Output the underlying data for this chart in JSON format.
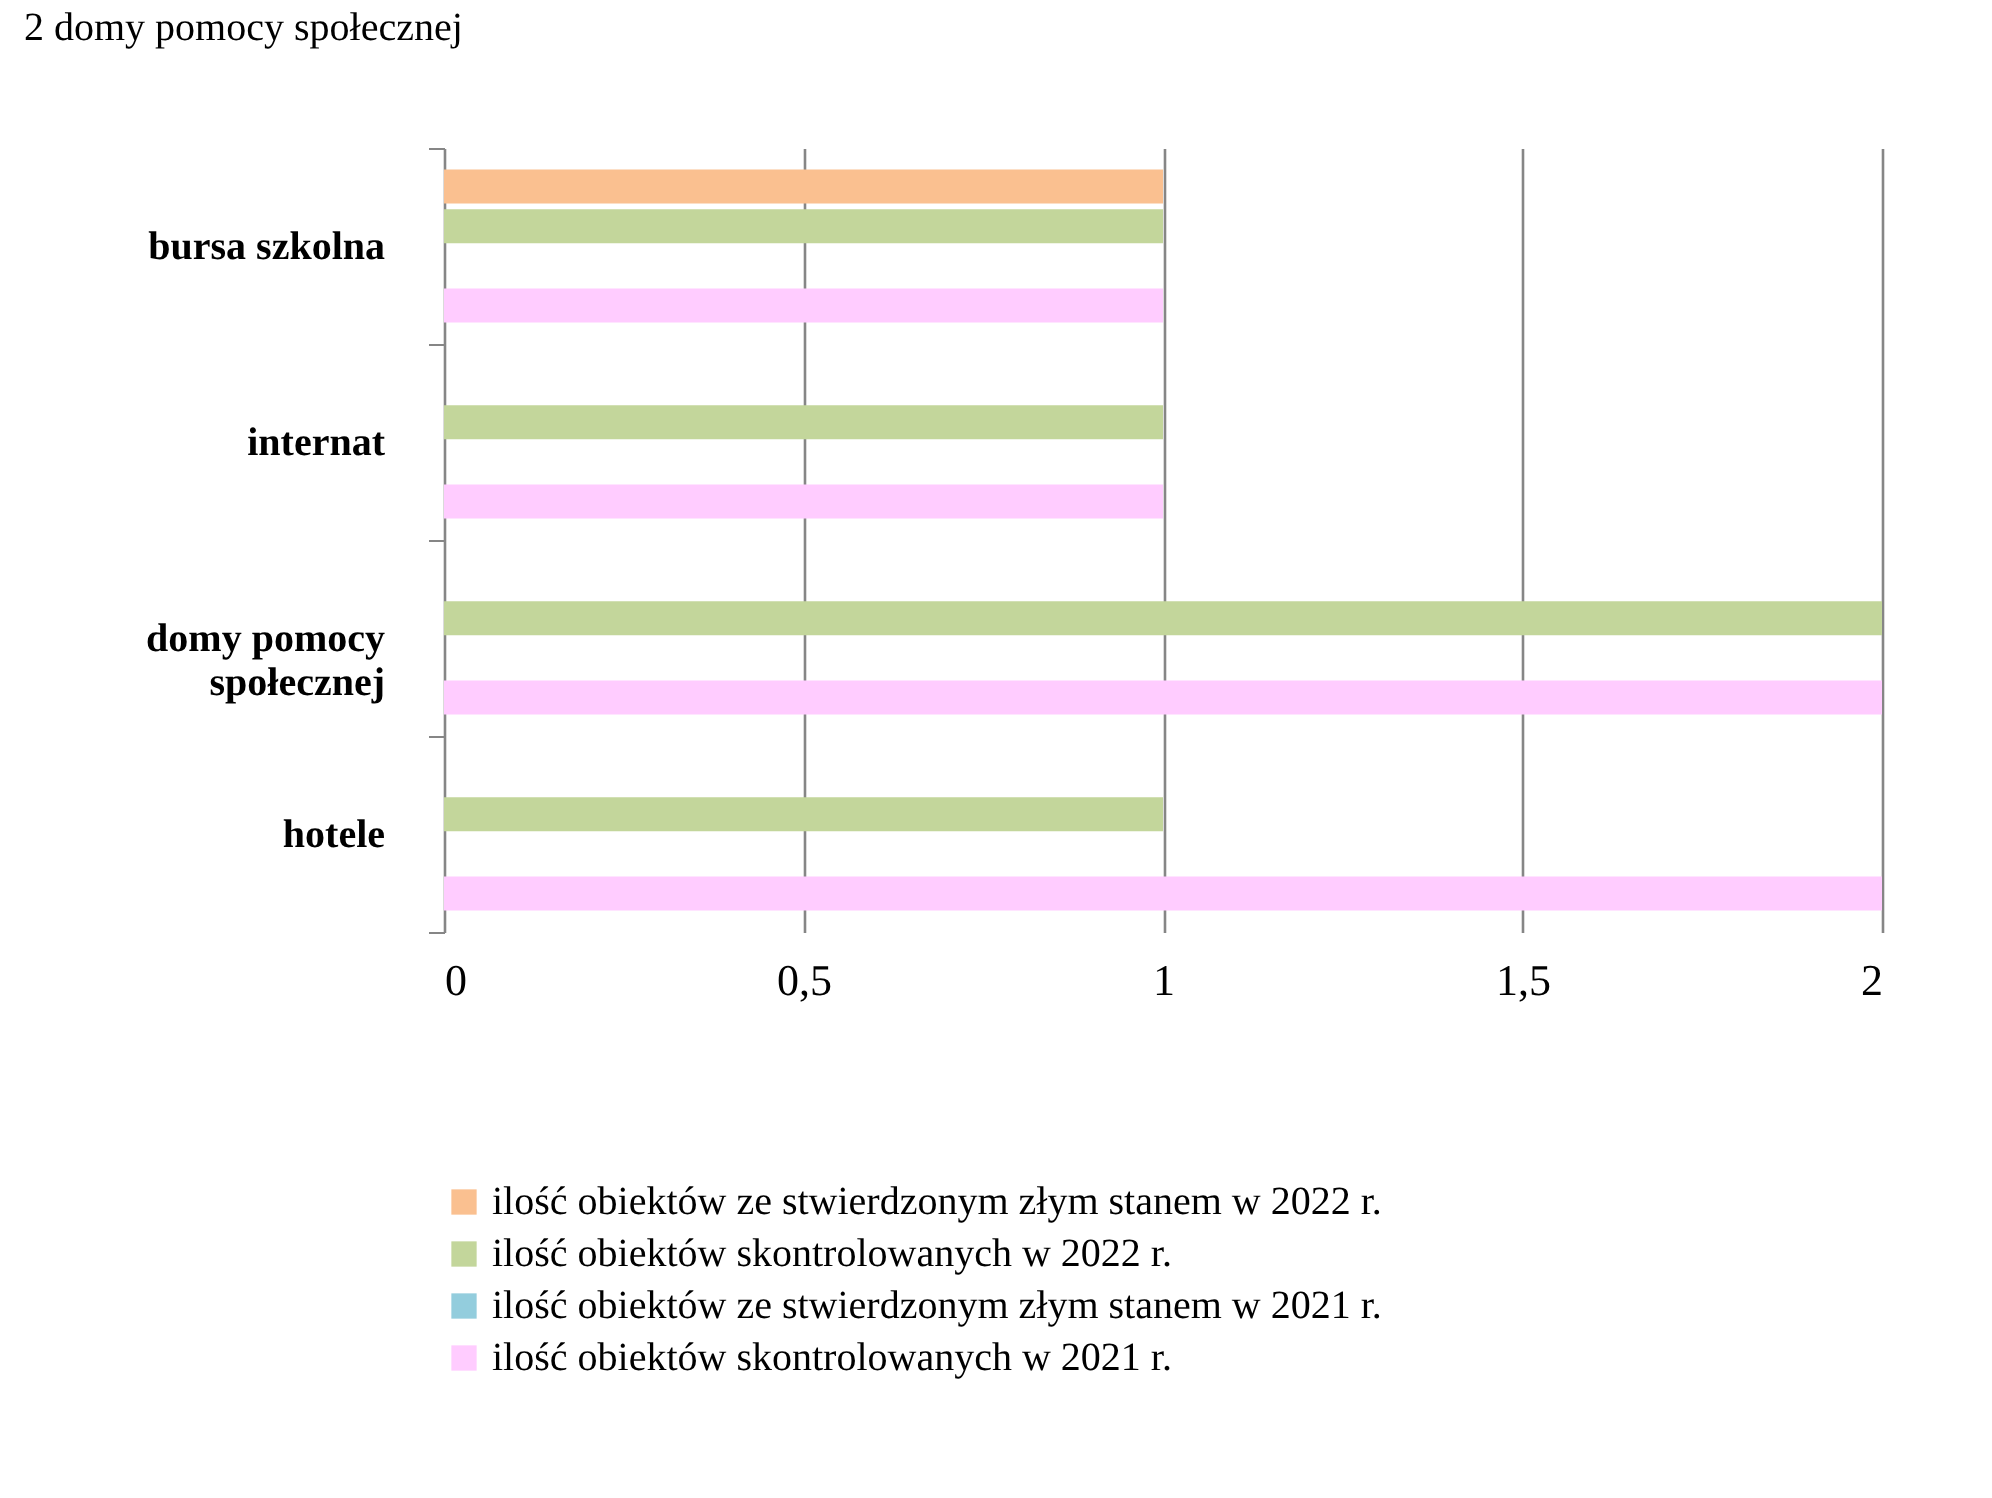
{
  "chart_data": {
    "type": "bar",
    "orientation": "horizontal",
    "annotations": [
      "2 domy pomocy społecznej"
    ],
    "categories": [
      "bursa szkolna",
      "internat",
      "domy pomocy społecznej",
      "hotele"
    ],
    "series": [
      {
        "name": "ilość obiektów ze stwierdzonym złym stanem w 2022 r.",
        "color": "#fac090",
        "values": [
          1,
          null,
          null,
          null
        ]
      },
      {
        "name": "ilość obiektów skontrolowanych w 2022 r.",
        "color": "#c3d69b",
        "values": [
          1,
          1,
          2,
          1
        ]
      },
      {
        "name": "ilość obiektów ze stwierdzonym złym stanem w 2021 r.",
        "color": "#93cddd",
        "values": [
          null,
          null,
          null,
          null
        ]
      },
      {
        "name": "ilość obiektów skontrolowanych w 2021 r.",
        "color": "#ffccff",
        "values": [
          1,
          1,
          2,
          2
        ]
      }
    ],
    "xlim": [
      0,
      2
    ],
    "xticks": [
      0,
      {
        "value": 0.5,
        "label": "0,5"
      },
      1,
      {
        "value": 1.5,
        "label": "1,5"
      },
      2
    ],
    "grid": "x",
    "legend": "bottom"
  }
}
